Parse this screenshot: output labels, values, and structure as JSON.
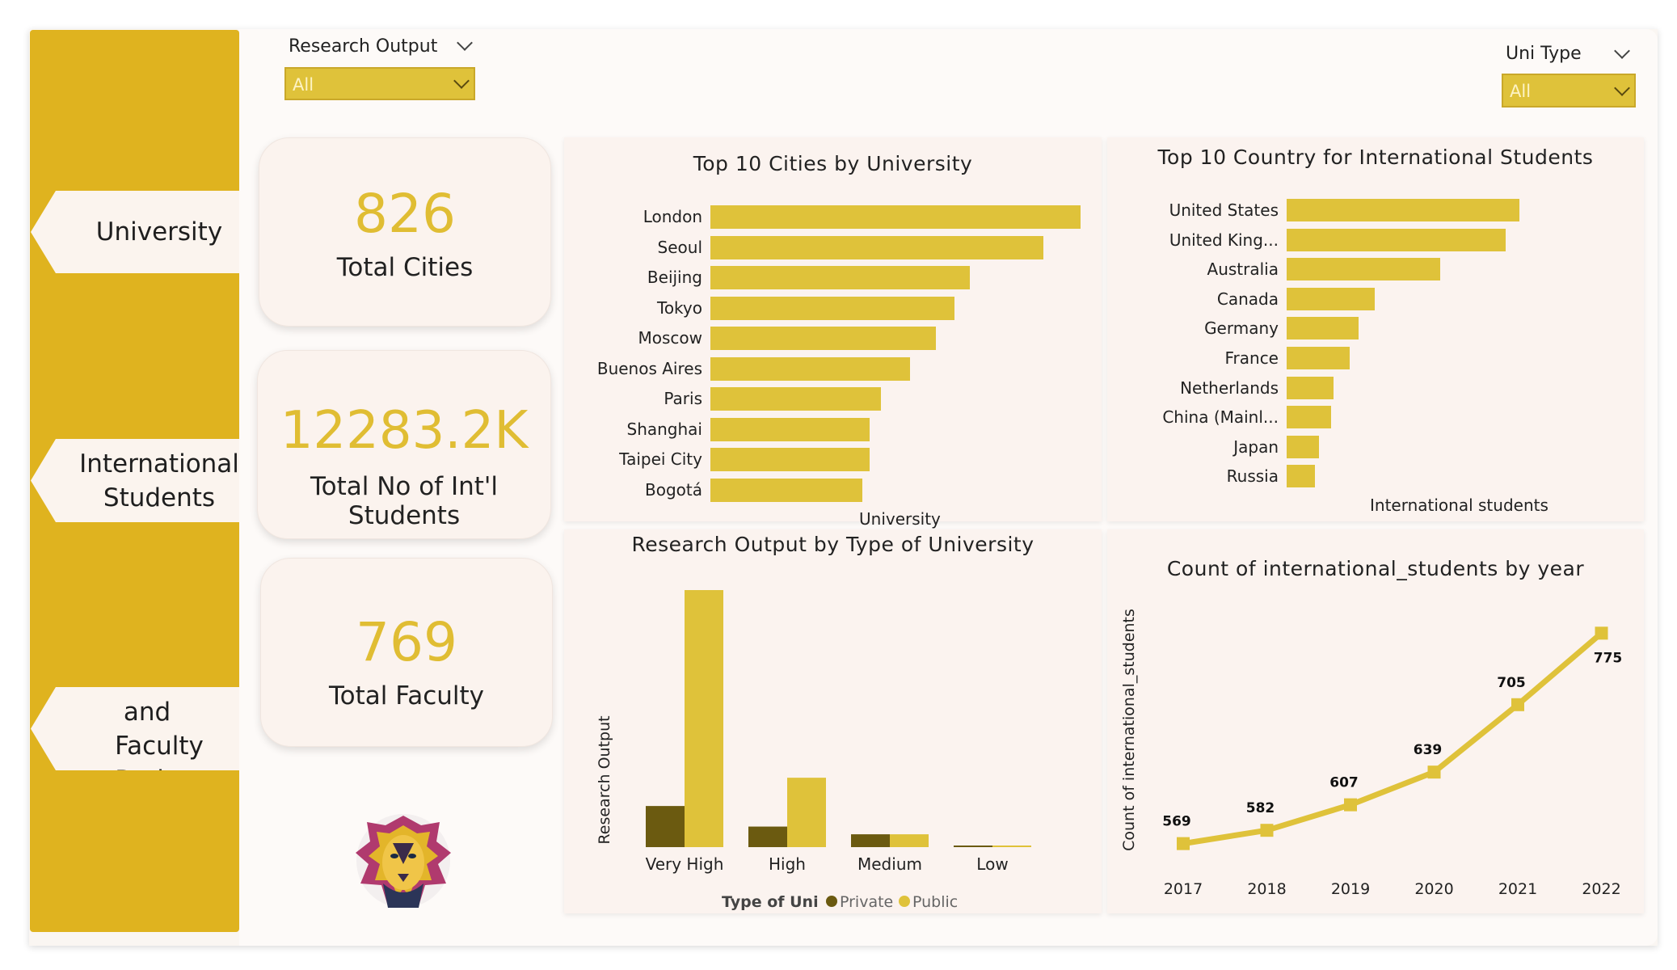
{
  "nav": {
    "items": [
      {
        "label_line1": "University",
        "label_line2": ""
      },
      {
        "label_line1": "International",
        "label_line2": "Students"
      },
      {
        "label_line1": "Research and",
        "label_line2": "Faculty Ratio"
      }
    ]
  },
  "filters": {
    "research_output": {
      "label": "Research Output",
      "value": "All"
    },
    "uni_type": {
      "label": "Uni Type",
      "value": "All"
    }
  },
  "kpis": {
    "cities": {
      "value": "826",
      "label": "Total Cities"
    },
    "students": {
      "value": "12283.2K",
      "label": "Total No of Int'l Students"
    },
    "faculty": {
      "value": "769",
      "label": "Total Faculty"
    }
  },
  "chart_data": [
    {
      "id": "cities",
      "type": "bar",
      "orientation": "horizontal",
      "title": "Top 10 Cities by University",
      "xlabel": "University",
      "categories": [
        "London",
        "Seoul",
        "Beijing",
        "Tokyo",
        "Moscow",
        "Buenos Aires",
        "Paris",
        "Shanghai",
        "Taipei City",
        "Bogotá"
      ],
      "values": [
        100,
        90,
        70,
        66,
        61,
        54,
        46,
        43,
        43,
        41
      ],
      "color": "#dfc23a"
    },
    {
      "id": "countries",
      "type": "bar",
      "orientation": "horizontal",
      "title": "Top 10 Country for International Students",
      "xlabel": "International students",
      "categories": [
        "United States",
        "United King...",
        "Australia",
        "Canada",
        "Germany",
        "France",
        "Netherlands",
        "China (Mainl...",
        "Japan",
        "Russia"
      ],
      "values": [
        100,
        94,
        66,
        38,
        31,
        27,
        20,
        19,
        14,
        12
      ],
      "color": "#dfc23a"
    },
    {
      "id": "research",
      "type": "bar",
      "title": "Research Output by Type of University",
      "ylabel": "Research Output",
      "categories": [
        "Very High",
        "High",
        "Medium",
        "Low"
      ],
      "series": [
        {
          "name": "Private",
          "values": [
            16,
            8,
            5,
            0.5
          ],
          "color": "#6b5a10"
        },
        {
          "name": "Public",
          "values": [
            100,
            27,
            5,
            0.5
          ],
          "color": "#dfc23a"
        }
      ],
      "legend_title": "Type of Uni"
    },
    {
      "id": "yearly",
      "type": "line",
      "title": "Count of international_students by year",
      "ylabel": "Count of international_students",
      "x": [
        "2017",
        "2018",
        "2019",
        "2020",
        "2021",
        "2022"
      ],
      "values": [
        569,
        582,
        607,
        639,
        705,
        775
      ],
      "ylim": [
        560,
        780
      ],
      "color": "#dfc23a"
    }
  ]
}
